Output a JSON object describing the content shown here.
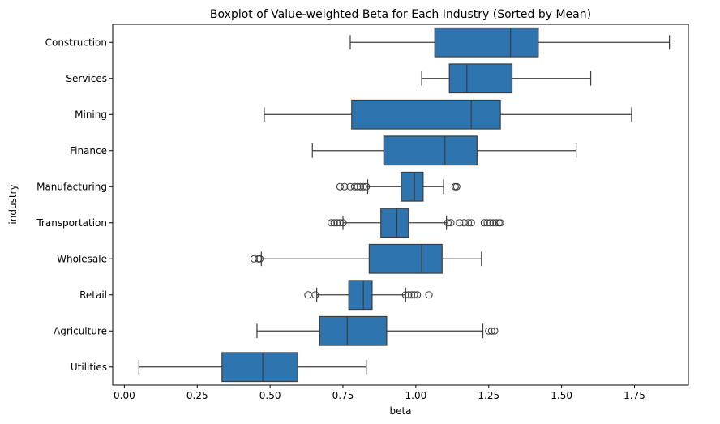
{
  "chart_data": {
    "type": "boxplot",
    "orientation": "horizontal",
    "title": "Boxplot of Value-weighted Beta for Each Industry (Sorted by Mean)",
    "xlabel": "beta",
    "ylabel": "industry",
    "xlim": [
      -0.04,
      1.935
    ],
    "xticks": [
      0.0,
      0.25,
      0.5,
      0.75,
      1.0,
      1.25,
      1.5,
      1.75
    ],
    "xtick_labels": [
      "0.00",
      "0.25",
      "0.50",
      "0.75",
      "1.00",
      "1.25",
      "1.50",
      "1.75"
    ],
    "grid": false,
    "box_color": "#2e75b0",
    "line_color": "#3d3d3d",
    "categories": [
      "Construction",
      "Services",
      "Mining",
      "Finance",
      "Manufacturing",
      "Transportation",
      "Wholesale",
      "Retail",
      "Agriculture",
      "Utilities"
    ],
    "boxes": [
      {
        "category": "Construction",
        "whisker_low": 0.775,
        "q1": 1.065,
        "median": 1.325,
        "q3": 1.42,
        "whisker_high": 1.87,
        "outliers": []
      },
      {
        "category": "Services",
        "whisker_low": 1.02,
        "q1": 1.115,
        "median": 1.175,
        "q3": 1.33,
        "whisker_high": 1.6,
        "outliers": []
      },
      {
        "category": "Mining",
        "whisker_low": 0.48,
        "q1": 0.78,
        "median": 1.19,
        "q3": 1.29,
        "whisker_high": 1.74,
        "outliers": []
      },
      {
        "category": "Finance",
        "whisker_low": 0.645,
        "q1": 0.89,
        "median": 1.1,
        "q3": 1.21,
        "whisker_high": 1.55,
        "outliers": []
      },
      {
        "category": "Manufacturing",
        "whisker_low": 0.835,
        "q1": 0.95,
        "median": 0.995,
        "q3": 1.025,
        "whisker_high": 1.095,
        "outliers": [
          0.74,
          0.755,
          0.775,
          0.79,
          0.8,
          0.81,
          0.82,
          0.83,
          1.135,
          1.14
        ]
      },
      {
        "category": "Transportation",
        "whisker_low": 0.75,
        "q1": 0.88,
        "median": 0.935,
        "q3": 0.975,
        "whisker_high": 1.105,
        "outliers": [
          0.71,
          0.72,
          0.73,
          0.74,
          0.75,
          1.11,
          1.12,
          1.15,
          1.165,
          1.18,
          1.19,
          1.235,
          1.245,
          1.255,
          1.265,
          1.275,
          1.285,
          1.29
        ]
      },
      {
        "category": "Wholesale",
        "whisker_low": 0.47,
        "q1": 0.84,
        "median": 1.02,
        "q3": 1.09,
        "whisker_high": 1.225,
        "outliers": [
          0.445,
          0.46,
          0.465
        ]
      },
      {
        "category": "Retail",
        "whisker_low": 0.66,
        "q1": 0.77,
        "median": 0.82,
        "q3": 0.85,
        "whisker_high": 0.965,
        "outliers": [
          0.63,
          0.655,
          0.965,
          0.975,
          0.985,
          0.995,
          1.005,
          1.045
        ]
      },
      {
        "category": "Agriculture",
        "whisker_low": 0.455,
        "q1": 0.67,
        "median": 0.765,
        "q3": 0.9,
        "whisker_high": 1.23,
        "outliers": [
          1.25,
          1.26,
          1.27
        ]
      },
      {
        "category": "Utilities",
        "whisker_low": 0.05,
        "q1": 0.335,
        "median": 0.475,
        "q3": 0.595,
        "whisker_high": 0.83,
        "outliers": []
      }
    ]
  }
}
